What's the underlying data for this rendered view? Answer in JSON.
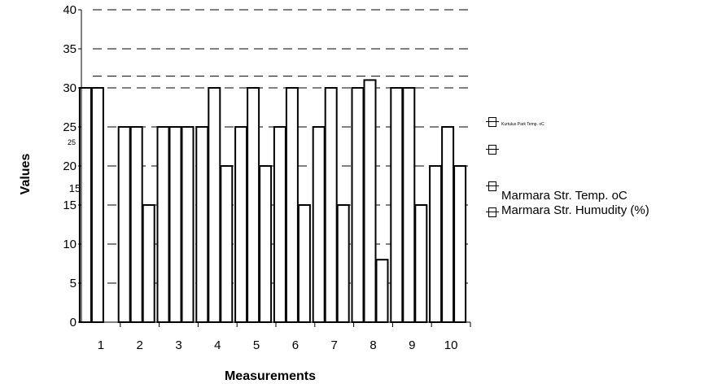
{
  "chart_data": {
    "type": "bar",
    "title": "",
    "xlabel": "Measurements",
    "ylabel": "Values",
    "categories": [
      "1",
      "2",
      "3",
      "4",
      "5",
      "6",
      "7",
      "8",
      "9",
      "10"
    ],
    "y_ticks": [
      "0",
      "5",
      "10",
      "15",
      "20",
      "25",
      "30",
      "35",
      "40"
    ],
    "ylim": [
      0,
      40
    ],
    "grid": "horizontal dashed",
    "legend_position": "right",
    "series": [
      {
        "name": "Kurtulus Park Temp. oC",
        "values": [
          30,
          25,
          25,
          25,
          25,
          25,
          25,
          30,
          30,
          20
        ]
      },
      {
        "name": "",
        "values": [
          30,
          25,
          25,
          30,
          30,
          30,
          30,
          31,
          30,
          25
        ]
      },
      {
        "name": "Marmara Str. Temp. oC",
        "values": [
          0,
          15,
          25,
          20,
          20,
          15,
          15,
          8,
          15,
          20
        ]
      },
      {
        "name": "Marmara Str. Humudity (%)",
        "values": [
          0,
          0,
          0,
          0,
          0,
          0,
          0,
          0,
          0,
          0
        ]
      }
    ]
  },
  "legend_entries": [
    {
      "label": "Kurtulus Park Temp. oC"
    },
    {
      "label": ""
    },
    {
      "label": "Marmara Str. Temp. oC"
    },
    {
      "label": "Marmara Str. Humudity (%)"
    }
  ]
}
